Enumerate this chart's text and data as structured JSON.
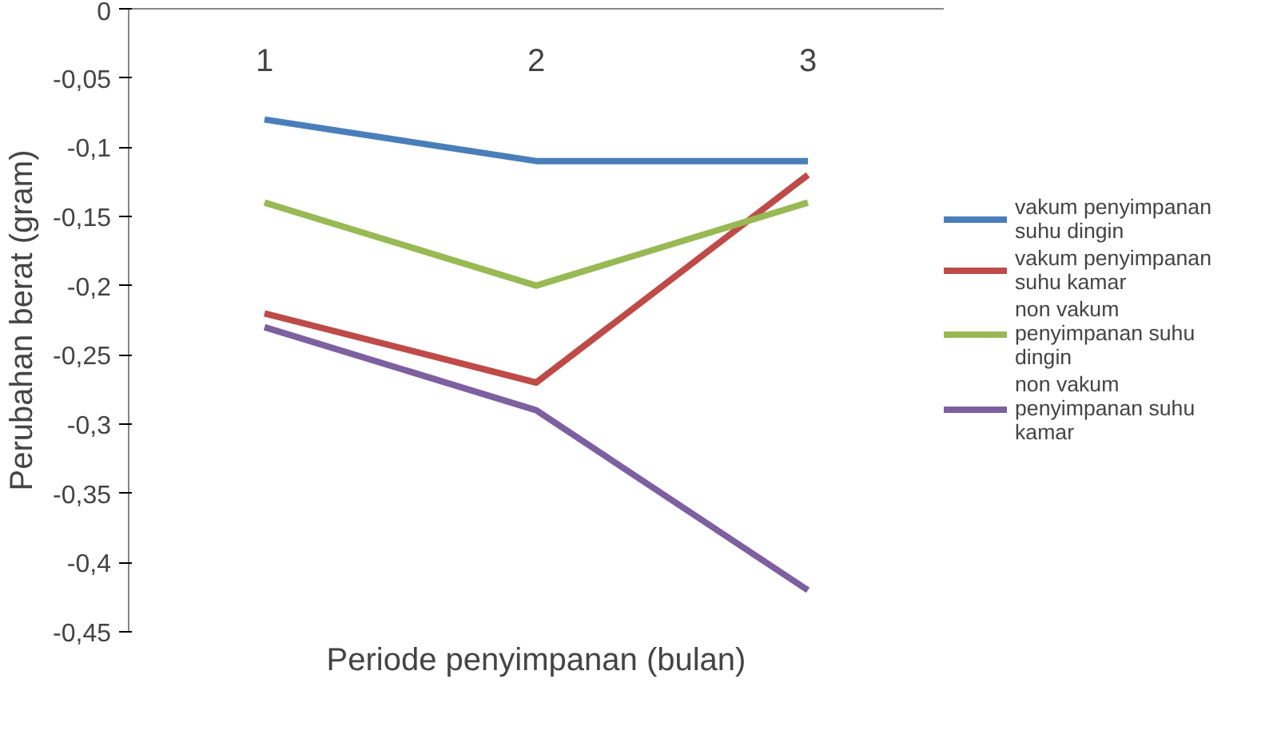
{
  "chart_data": {
    "type": "line",
    "xlabel": "Periode penyimpanan (bulan)",
    "ylabel": "Perubahan berat (gram)",
    "categories": [
      "1",
      "2",
      "3"
    ],
    "series": [
      {
        "name": "vakum penyimpanan suhu dingin",
        "color": "#4a7ebb",
        "values": [
          -0.08,
          -0.11,
          -0.11
        ]
      },
      {
        "name": "vakum penyimpanan suhu kamar",
        "color": "#be4b48",
        "values": [
          -0.22,
          -0.27,
          -0.12
        ]
      },
      {
        "name": "non vakum penyimpanan suhu dingin",
        "color": "#98b954",
        "values": [
          -0.14,
          -0.2,
          -0.14
        ]
      },
      {
        "name": "non vakum penyimpanan suhu kamar",
        "color": "#7d60a0",
        "values": [
          -0.23,
          -0.29,
          -0.42
        ]
      }
    ],
    "ylim": [
      -0.45,
      0
    ],
    "yticks": [
      {
        "value": 0,
        "label": "0"
      },
      {
        "value": -0.05,
        "label": "-0,05"
      },
      {
        "value": -0.1,
        "label": "-0,1"
      },
      {
        "value": -0.15,
        "label": "-0,15"
      },
      {
        "value": -0.2,
        "label": "-0,2"
      },
      {
        "value": -0.25,
        "label": "-0,25"
      },
      {
        "value": -0.3,
        "label": "-0,3"
      },
      {
        "value": -0.35,
        "label": "-0,35"
      },
      {
        "value": -0.4,
        "label": "-0,4"
      },
      {
        "value": -0.45,
        "label": "-0,45"
      }
    ],
    "grid": false,
    "legend": "right",
    "marker": "none",
    "line_style": "solid"
  }
}
